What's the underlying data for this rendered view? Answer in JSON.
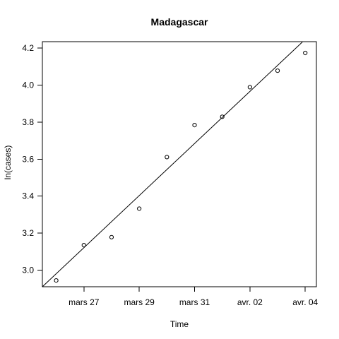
{
  "chart_data": {
    "type": "scatter",
    "title": "Madagascar",
    "xlabel": "Time",
    "ylabel": "ln(cases)",
    "x": [
      "2020-03-26",
      "2020-03-27",
      "2020-03-28",
      "2020-03-29",
      "2020-03-30",
      "2020-03-31",
      "2020-04-01",
      "2020-04-02",
      "2020-04-03",
      "2020-04-04"
    ],
    "y": [
      2.944,
      3.135,
      3.178,
      3.332,
      3.611,
      3.784,
      3.829,
      3.989,
      4.078,
      4.174
    ],
    "xlim": [
      "2020-03-25 12:00",
      "2020-04-04 09:40"
    ],
    "ylim": [
      2.91,
      4.235
    ],
    "x_ticks": [
      {
        "value": "2020-03-27",
        "label": "mars 27"
      },
      {
        "value": "2020-03-29",
        "label": "mars 29"
      },
      {
        "value": "2020-03-31",
        "label": "mars 31"
      },
      {
        "value": "2020-04-02",
        "label": "avr. 02"
      },
      {
        "value": "2020-04-04",
        "label": "avr. 04"
      }
    ],
    "y_ticks": [
      3.0,
      3.2,
      3.4,
      3.6,
      3.8,
      4.0,
      4.2
    ],
    "y_tick_labels": [
      "3.0",
      "3.2",
      "3.4",
      "3.6",
      "3.8",
      "4.0",
      "4.2"
    ],
    "fit_line": {
      "x": [
        "2020-03-25 12:00",
        "2020-04-03 21:30"
      ],
      "y": [
        2.91,
        4.233
      ]
    },
    "grid": false,
    "legend": "none"
  }
}
